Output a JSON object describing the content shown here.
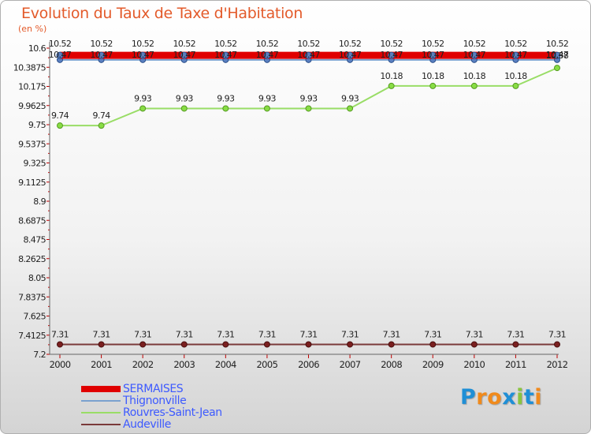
{
  "chart_data": {
    "type": "line",
    "title": "Evolution du Taux de Taxe d'Habitation",
    "ylabel": "(en %)",
    "xlabel": "",
    "categories": [
      "2000",
      "2001",
      "2002",
      "2003",
      "2004",
      "2005",
      "2006",
      "2007",
      "2008",
      "2009",
      "2010",
      "2011",
      "2012"
    ],
    "ylim": [
      7.2,
      10.6
    ],
    "yticks": [
      "10.6",
      "10.3875",
      "10.175",
      "9.9625",
      "9.75",
      "9.5375",
      "9.325",
      "9.1125",
      "8.9",
      "8.6875",
      "8.475",
      "8.2625",
      "8.05",
      "7.8375",
      "7.625",
      "7.4125",
      "7.2"
    ],
    "grid": false,
    "legend_position": "bottom-left",
    "series": [
      {
        "name": "SERMAISES",
        "color": "#e00000",
        "values": [
          10.52,
          10.52,
          10.52,
          10.52,
          10.52,
          10.52,
          10.52,
          10.52,
          10.52,
          10.52,
          10.52,
          10.52,
          10.52
        ],
        "labels": [
          "10.52",
          "10.52",
          "10.52",
          "10.52",
          "10.52",
          "10.52",
          "10.52",
          "10.52",
          "10.52",
          "10.52",
          "10.52",
          "10.52",
          "10.52"
        ]
      },
      {
        "name": "Thignonville",
        "color": "#7aa1cf",
        "values": [
          10.47,
          10.47,
          10.47,
          10.47,
          10.47,
          10.47,
          10.47,
          10.47,
          10.47,
          10.47,
          10.47,
          10.47,
          10.47
        ],
        "labels": [
          "10.47",
          "10.47",
          "10.47",
          "10.47",
          "10.47",
          "10.47",
          "10.47",
          "10.47",
          "10.47",
          "10.47",
          "10.47",
          "10.47",
          "10.47"
        ]
      },
      {
        "name": "Rouvres-Saint-Jean",
        "color": "#99dd66",
        "values": [
          9.74,
          9.74,
          9.93,
          9.93,
          9.93,
          9.93,
          9.93,
          9.93,
          10.18,
          10.18,
          10.18,
          10.18,
          10.38
        ],
        "labels": [
          "9.74",
          "9.74",
          "9.93",
          "9.93",
          "9.93",
          "9.93",
          "9.93",
          "9.93",
          "10.18",
          "10.18",
          "10.18",
          "10.18",
          "10.38"
        ]
      },
      {
        "name": "Audeville",
        "color": "#7a3a3a",
        "values": [
          7.31,
          7.31,
          7.31,
          7.31,
          7.31,
          7.31,
          7.31,
          7.31,
          7.31,
          7.31,
          7.31,
          7.31,
          7.31
        ],
        "labels": [
          "7.31",
          "7.31",
          "7.31",
          "7.31",
          "7.31",
          "7.31",
          "7.31",
          "7.31",
          "7.31",
          "7.31",
          "7.31",
          "7.31",
          "7.31"
        ]
      }
    ]
  },
  "logo": {
    "text": "Proxiti"
  }
}
